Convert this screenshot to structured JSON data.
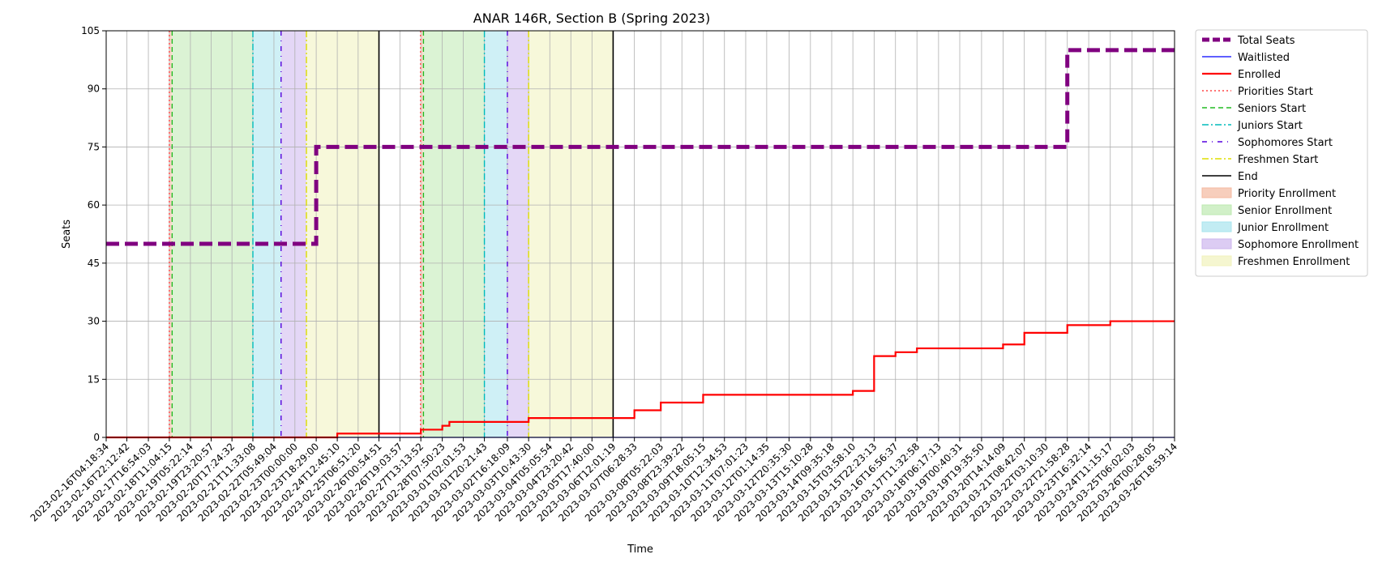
{
  "chart_data": {
    "type": "line",
    "title": "ANAR 146R, Section B (Spring 2023)",
    "xlabel": "Time",
    "ylabel": "Seats",
    "ylim": [
      0,
      105
    ],
    "yticks": [
      0,
      15,
      30,
      45,
      60,
      75,
      90,
      105
    ],
    "grid": true,
    "legend_placement": "outside-right",
    "x_start": "2023-02-16T04:18:34",
    "x_end": "2023-03-26T18:59:14",
    "x_ticks": [
      "2023-02-16T04:18:34",
      "2023-02-16T22:12:42",
      "2023-02-17T16:54:03",
      "2023-02-18T11:04:15",
      "2023-02-19T05:22:14",
      "2023-02-19T23:20:57",
      "2023-02-20T17:24:32",
      "2023-02-21T11:33:08",
      "2023-02-22T05:49:04",
      "2023-02-23T00:00:00",
      "2023-02-23T18:29:00",
      "2023-02-24T12:45:10",
      "2023-02-25T06:51:20",
      "2023-02-26T00:54:51",
      "2023-02-26T19:03:57",
      "2023-02-27T13:13:52",
      "2023-02-28T07:50:23",
      "2023-03-01T02:01:53",
      "2023-03-01T20:21:43",
      "2023-03-02T16:18:09",
      "2023-03-03T10:43:30",
      "2023-03-04T05:05:54",
      "2023-03-04T23:20:42",
      "2023-03-05T17:40:00",
      "2023-03-06T12:01:19",
      "2023-03-07T06:28:33",
      "2023-03-08T05:22:03",
      "2023-03-08T23:39:22",
      "2023-03-09T18:05:15",
      "2023-03-10T12:34:53",
      "2023-03-11T07:01:23",
      "2023-03-12T01:14:35",
      "2023-03-12T20:35:30",
      "2023-03-13T15:10:28",
      "2023-03-14T09:35:18",
      "2023-03-15T03:58:10",
      "2023-03-15T22:23:13",
      "2023-03-16T16:56:37",
      "2023-03-17T11:32:58",
      "2023-03-18T06:17:13",
      "2023-03-19T00:40:31",
      "2023-03-19T19:35:50",
      "2023-03-20T14:14:09",
      "2023-03-21T08:42:07",
      "2023-03-22T03:10:30",
      "2023-03-22T21:58:28",
      "2023-03-23T16:32:14",
      "2023-03-24T11:15:17",
      "2023-03-25T06:02:03",
      "2023-03-26T00:28:05",
      "2023-03-26T18:59:14"
    ],
    "series": [
      {
        "name": "Total Seats",
        "color": "#800080",
        "style": "dashed-thick",
        "x": [
          "2023-02-16T04:18:34",
          "2023-02-23T18:29:00",
          "2023-02-23T18:29:00",
          "2023-03-22T21:58:28",
          "2023-03-22T21:58:28",
          "2023-03-26T18:59:14"
        ],
        "values": [
          50,
          50,
          75,
          75,
          100,
          100
        ]
      },
      {
        "name": "Waitlisted",
        "color": "#0000ff",
        "style": "solid",
        "x": [
          "2023-02-16T04:18:34",
          "2023-03-26T18:59:14"
        ],
        "values": [
          0,
          0
        ]
      },
      {
        "name": "Enrolled",
        "color": "#ff0000",
        "style": "solid",
        "x": [
          "2023-02-16T04:18:34",
          "2023-02-24T12:45:10",
          "2023-02-24T12:45:10",
          "2023-02-27T13:13:52",
          "2023-02-27T13:13:52",
          "2023-02-28T07:50:23",
          "2023-02-28T07:50:23",
          "2023-02-28T14:00:00",
          "2023-02-28T14:00:00",
          "2023-03-03T10:43:30",
          "2023-03-03T10:43:30",
          "2023-03-07T06:28:33",
          "2023-03-07T06:28:33",
          "2023-03-08T05:22:03",
          "2023-03-08T05:22:03",
          "2023-03-09T18:05:15",
          "2023-03-09T18:05:15",
          "2023-03-15T03:58:10",
          "2023-03-15T03:58:10",
          "2023-03-15T22:23:13",
          "2023-03-15T22:23:13",
          "2023-03-16T16:56:37",
          "2023-03-16T16:56:37",
          "2023-03-17T11:32:58",
          "2023-03-17T11:32:58",
          "2023-03-20T14:14:09",
          "2023-03-20T14:14:09",
          "2023-03-21T08:42:07",
          "2023-03-21T08:42:07",
          "2023-03-22T21:58:28",
          "2023-03-22T21:58:28",
          "2023-03-24T11:15:17",
          "2023-03-24T11:15:17",
          "2023-03-26T18:59:14"
        ],
        "values": [
          0,
          0,
          1,
          1,
          2,
          2,
          3,
          3,
          4,
          4,
          5,
          5,
          7,
          7,
          9,
          9,
          11,
          11,
          12,
          12,
          21,
          21,
          22,
          22,
          23,
          23,
          24,
          24,
          27,
          27,
          29,
          29,
          30,
          30
        ]
      }
    ],
    "vertical_lines": [
      {
        "name": "Priorities Start",
        "color": "#ff4444",
        "style": "dotted",
        "at": [
          "2023-02-18T11:04:15",
          "2023-02-27T13:00:00"
        ]
      },
      {
        "name": "Seniors Start",
        "color": "#22bb22",
        "style": "dashed",
        "at": [
          "2023-02-18T13:30:00",
          "2023-02-27T15:30:00"
        ]
      },
      {
        "name": "Juniors Start",
        "color": "#00bbbb",
        "style": "dashdot",
        "at": [
          "2023-02-21T11:33:08",
          "2023-03-01T20:21:43"
        ]
      },
      {
        "name": "Sophomores Start",
        "color": "#5500dd",
        "style": "loosely-dashdot",
        "at": [
          "2023-02-22T12:00:00",
          "2023-03-02T16:18:09"
        ]
      },
      {
        "name": "Freshmen Start",
        "color": "#dddd00",
        "style": "dashdot",
        "at": [
          "2023-02-23T10:00:00",
          "2023-03-03T10:43:30"
        ]
      },
      {
        "name": "End",
        "color": "#000000",
        "style": "solid",
        "at": [
          "2023-02-26T00:54:51",
          "2023-03-06T12:01:19"
        ]
      }
    ],
    "shaded_periods": [
      {
        "name": "Priority Enrollment",
        "color": "#f4b9a0",
        "ranges": [
          [
            "2023-02-18T11:04:15",
            "2023-02-18T13:30:00"
          ],
          [
            "2023-02-27T13:00:00",
            "2023-02-27T15:30:00"
          ]
        ]
      },
      {
        "name": "Senior Enrollment",
        "color": "#bde9b0",
        "ranges": [
          [
            "2023-02-18T13:30:00",
            "2023-02-21T11:33:08"
          ],
          [
            "2023-02-27T15:30:00",
            "2023-03-01T20:21:43"
          ]
        ]
      },
      {
        "name": "Junior Enrollment",
        "color": "#a8e4ee",
        "ranges": [
          [
            "2023-02-21T11:33:08",
            "2023-02-22T12:00:00"
          ],
          [
            "2023-03-01T20:21:43",
            "2023-03-02T16:18:09"
          ]
        ]
      },
      {
        "name": "Sophomore Enrollment",
        "color": "#cdb6ee",
        "ranges": [
          [
            "2023-02-22T12:00:00",
            "2023-02-23T10:00:00"
          ],
          [
            "2023-03-02T16:18:09",
            "2023-03-03T10:43:30"
          ]
        ]
      },
      {
        "name": "Freshmen Enrollment",
        "color": "#f1f2bc",
        "ranges": [
          [
            "2023-02-23T10:00:00",
            "2023-02-26T00:54:51"
          ],
          [
            "2023-03-03T10:43:30",
            "2023-03-06T12:01:19"
          ]
        ]
      }
    ]
  }
}
